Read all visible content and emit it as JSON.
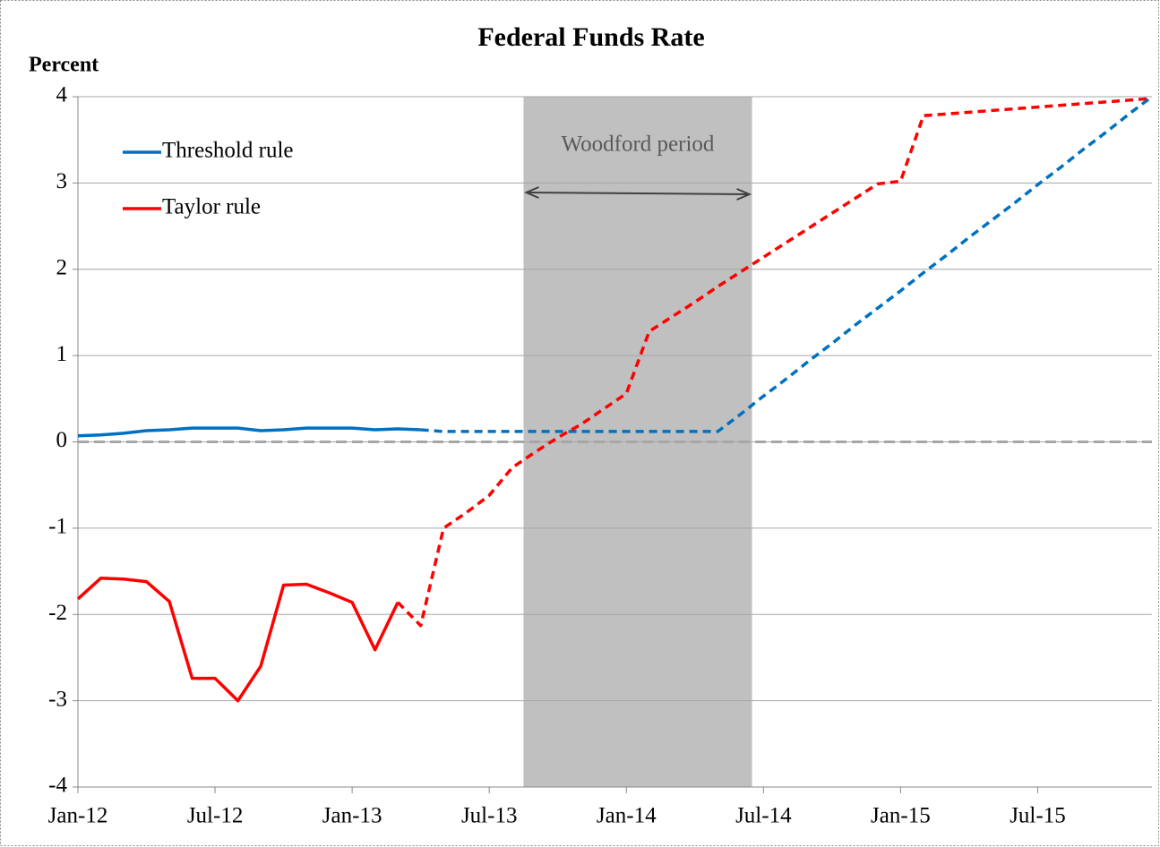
{
  "chart_data": {
    "type": "line",
    "title": "Federal Funds Rate",
    "y_label": "Percent",
    "categories": [
      "Jan-12",
      null,
      null,
      null,
      null,
      null,
      "Jul-12",
      null,
      null,
      null,
      null,
      null,
      "Jan-13",
      null,
      null,
      null,
      null,
      null,
      "Jul-13",
      null,
      null,
      null,
      null,
      null,
      "Jan-14",
      null,
      null,
      null,
      null,
      null,
      "Jul-14",
      null,
      null,
      null,
      null,
      null,
      "Jan-15",
      null,
      null,
      null,
      null,
      null,
      "Jul-15",
      null,
      null,
      null,
      null,
      null
    ],
    "series": [
      {
        "name": "Threshold rule",
        "color": "#0070c0",
        "dash_start": 15,
        "values": [
          0.07,
          0.08,
          0.1,
          0.13,
          0.14,
          0.16,
          0.16,
          0.16,
          0.13,
          0.14,
          0.16,
          0.16,
          0.16,
          0.14,
          0.15,
          0.14,
          0.12,
          0.12,
          0.12,
          0.12,
          0.12,
          0.12,
          0.12,
          0.12,
          0.12,
          0.12,
          0.12,
          0.12,
          0.12,
          0.32,
          0.53,
          0.73,
          0.94,
          1.14,
          1.35,
          1.55,
          1.75,
          1.96,
          2.16,
          2.37,
          2.57,
          2.77,
          2.98,
          3.18,
          3.39,
          3.59,
          3.8,
          4.0
        ]
      },
      {
        "name": "Taylor rule",
        "color": "#ff0000",
        "dash_start": 14,
        "values": [
          -1.82,
          -1.58,
          -1.59,
          -1.62,
          -1.85,
          -2.74,
          -2.74,
          -3.0,
          -2.6,
          -1.66,
          -1.65,
          -1.75,
          -1.86,
          -2.41,
          -1.86,
          -2.13,
          -1.0,
          -0.82,
          -0.62,
          -0.3,
          -0.12,
          0.05,
          0.2,
          0.38,
          0.56,
          1.28,
          1.45,
          1.62,
          1.8,
          1.97,
          2.14,
          2.31,
          2.48,
          2.65,
          2.82,
          2.99,
          3.02,
          3.78,
          3.8,
          3.82,
          3.84,
          3.86,
          3.88,
          3.9,
          3.92,
          3.94,
          3.96,
          3.98
        ]
      }
    ],
    "shaded_period": {
      "label": "Woodford period",
      "start": 19.5,
      "end": 29.5
    },
    "reference_line": 0,
    "ylim": [
      -4,
      4
    ],
    "yticks": [
      -4,
      -3,
      -2,
      -1,
      0,
      1,
      2,
      3,
      4
    ],
    "grid": true,
    "legend": "upper left"
  }
}
